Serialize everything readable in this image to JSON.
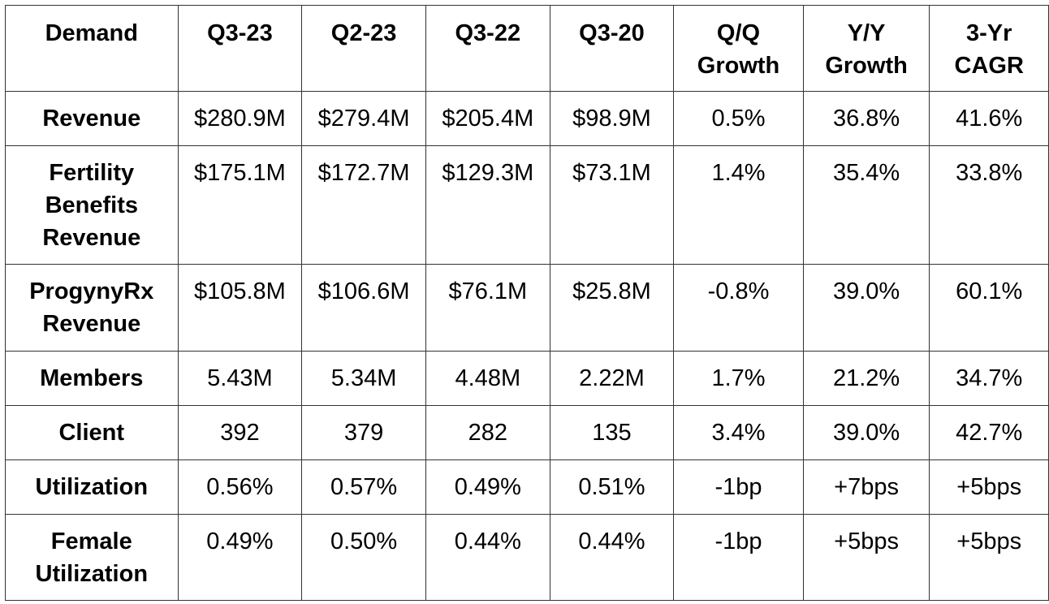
{
  "chart_data": {
    "type": "table",
    "columns": [
      "Demand",
      "Q3-23",
      "Q2-23",
      "Q3-22",
      "Q3-20",
      "Q/Q Growth",
      "Y/Y Growth",
      "3-Yr CAGR"
    ],
    "header_lines": [
      [
        "Demand"
      ],
      [
        "Q3-23"
      ],
      [
        "Q2-23"
      ],
      [
        "Q3-22"
      ],
      [
        "Q3-20"
      ],
      [
        "Q/Q",
        "Growth"
      ],
      [
        "Y/Y",
        "Growth"
      ],
      [
        "3-Yr",
        "CAGR"
      ]
    ],
    "rows": [
      {
        "label_lines": [
          "Revenue"
        ],
        "cells": [
          "$280.9M",
          "$279.4M",
          "$205.4M",
          "$98.9M",
          "0.5%",
          "36.8%",
          "41.6%"
        ]
      },
      {
        "label_lines": [
          "Fertility",
          "Benefits",
          "Revenue"
        ],
        "cells": [
          "$175.1M",
          "$172.7M",
          "$129.3M",
          "$73.1M",
          "1.4%",
          "35.4%",
          "33.8%"
        ]
      },
      {
        "label_lines": [
          "ProgynyRx",
          "Revenue"
        ],
        "cells": [
          "$105.8M",
          "$106.6M",
          "$76.1M",
          "$25.8M",
          "-0.8%",
          "39.0%",
          "60.1%"
        ]
      },
      {
        "label_lines": [
          "Members"
        ],
        "cells": [
          "5.43M",
          "5.34M",
          "4.48M",
          "2.22M",
          "1.7%",
          "21.2%",
          "34.7%"
        ]
      },
      {
        "label_lines": [
          "Client"
        ],
        "cells": [
          "392",
          "379",
          "282",
          "135",
          "3.4%",
          "39.0%",
          "42.7%"
        ]
      },
      {
        "label_lines": [
          "Utilization"
        ],
        "cells": [
          "0.56%",
          "0.57%",
          "0.49%",
          "0.51%",
          "-1bp",
          "+7bps",
          "+5bps"
        ]
      },
      {
        "label_lines": [
          "Female",
          "Utilization"
        ],
        "cells": [
          "0.49%",
          "0.50%",
          "0.44%",
          "0.44%",
          "-1bp",
          "+5bps",
          "+5bps"
        ]
      }
    ]
  }
}
